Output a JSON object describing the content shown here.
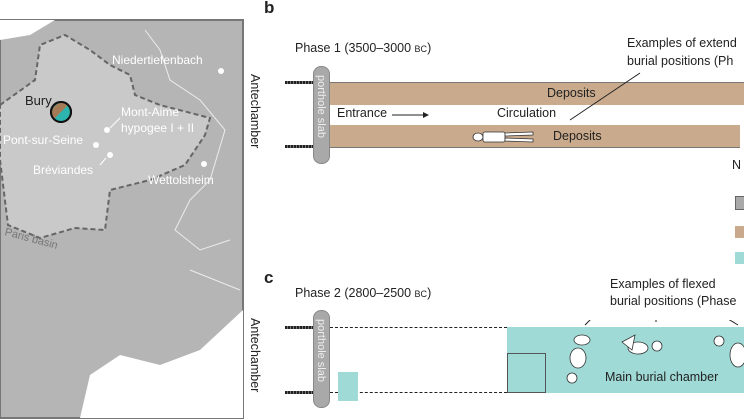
{
  "colors": {
    "deposits": "#c9aa8c",
    "main_chamber": "#9fdad6",
    "map_land": "#b5b5b5",
    "paris_basin": "#c9c9c9",
    "slab": "#a9a9a9"
  },
  "map": {
    "sites": [
      "Bury",
      "Niedertiefenbach",
      "Mont-Aime",
      "hypogee I + II",
      "Pont-sur-Seine",
      "Bréviandes",
      "Wettolsheim"
    ],
    "region": "Paris basin"
  },
  "panel_b": {
    "letter": "b",
    "phase": "Phase 1 (3500–3000 ",
    "phase_era": "BC",
    "antechamber": "Antechamber",
    "slab": "porthole slab",
    "deposits_top": "Deposits",
    "deposits_bottom": "Deposits",
    "entrance": "Entrance",
    "circulation": "Circulation",
    "examples_l1": "Examples of extend",
    "examples_l2": "burial positions (Ph",
    "legend_n": "N"
  },
  "panel_c": {
    "letter": "c",
    "phase": "Phase 2  (2800–2500 ",
    "phase_era": "BC",
    "antechamber": "Antechamber",
    "slab": "porthole slab",
    "examples_l1": "Examples of flexed",
    "examples_l2": "burial positions (Phase",
    "main_chamber": "Main burial chamber"
  }
}
